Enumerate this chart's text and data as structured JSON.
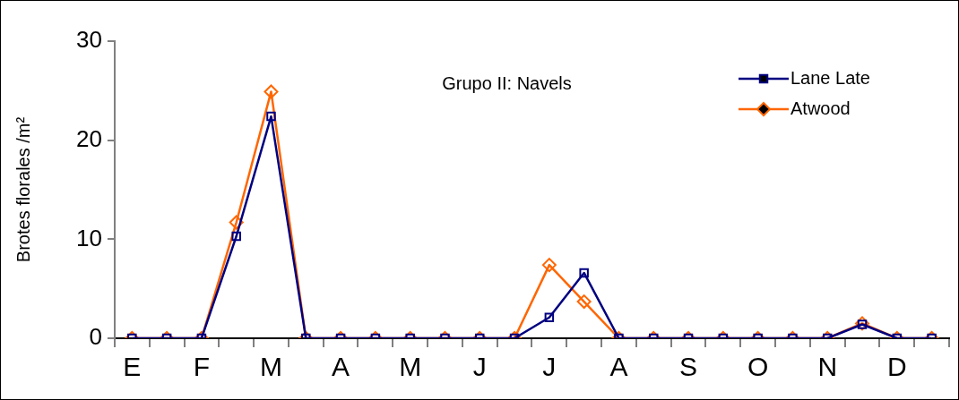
{
  "chart_data": {
    "type": "line",
    "ylabel": "Brotes florales /m²",
    "annotations": [
      "Grupo II: Navels"
    ],
    "categories": [
      "E",
      null,
      "F",
      null,
      "M",
      null,
      "A",
      null,
      "M",
      null,
      "J",
      null,
      "J",
      null,
      "A",
      null,
      "S",
      null,
      "O",
      null,
      "N",
      null,
      "D",
      null
    ],
    "series": [
      {
        "name": "Lane Late",
        "color": "#000080",
        "marker": "square",
        "values": [
          0,
          0,
          0,
          10.3,
          22.4,
          0,
          0,
          0,
          0,
          0,
          0,
          0,
          2.1,
          6.6,
          0,
          0,
          0,
          0,
          0,
          0,
          0,
          1.4,
          0,
          0
        ]
      },
      {
        "name": "Atwood",
        "color": "#ff6600",
        "marker": "diamond",
        "values": [
          0,
          0,
          0,
          11.7,
          24.9,
          0,
          0,
          0,
          0,
          0,
          0,
          0,
          7.4,
          3.7,
          0,
          0,
          0,
          0,
          0,
          0,
          0,
          1.5,
          0,
          0
        ]
      }
    ],
    "ylim": [
      0,
      30
    ],
    "yticks": [
      0,
      10,
      20,
      30
    ],
    "grid": false,
    "legend": "top right",
    "line_style": "solid"
  }
}
